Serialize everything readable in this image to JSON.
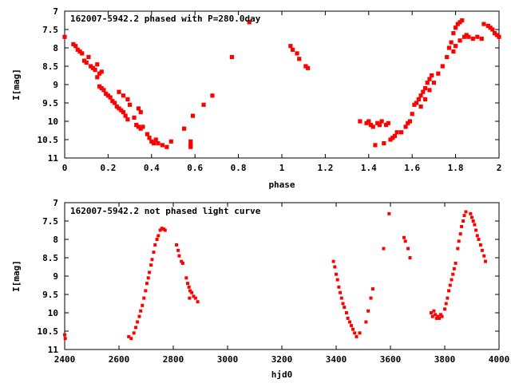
{
  "chart_data": [
    {
      "type": "scatter",
      "title": "162007-5942.2 phased with P=280.0day",
      "xlabel": "phase",
      "ylabel": "I[mag]",
      "xlim": [
        0,
        2
      ],
      "ylim": [
        11,
        7
      ],
      "y_inverted": true,
      "xticks": [
        0,
        0.2,
        0.4,
        0.6,
        0.8,
        1,
        1.2,
        1.4,
        1.6,
        1.8,
        2
      ],
      "xtick_labels": [
        "0",
        "0.2",
        "0.4",
        "0.6",
        "0.8",
        "1",
        "1.2",
        "1.4",
        "1.6",
        "1.8",
        "2"
      ],
      "yticks": [
        7,
        7.5,
        8,
        8.5,
        9,
        9.5,
        10,
        10.5,
        11
      ],
      "ytick_labels": [
        "7",
        "7.5",
        "8",
        "8.5",
        "9",
        "9.5",
        "10",
        "10.5",
        "11"
      ],
      "grid": false,
      "point_color": "#ff0000",
      "series": [
        {
          "points": [
            [
              0.0,
              7.7
            ],
            [
              0.04,
              7.9
            ],
            [
              0.05,
              7.95
            ],
            [
              0.06,
              8.05
            ],
            [
              0.07,
              8.1
            ],
            [
              0.08,
              8.15
            ],
            [
              0.09,
              8.35
            ],
            [
              0.1,
              8.4
            ],
            [
              0.11,
              8.25
            ],
            [
              0.12,
              8.5
            ],
            [
              0.13,
              8.55
            ],
            [
              0.14,
              8.6
            ],
            [
              0.15,
              8.45
            ],
            [
              0.16,
              8.7
            ],
            [
              0.17,
              8.65
            ],
            [
              0.15,
              8.8
            ],
            [
              0.16,
              9.05
            ],
            [
              0.17,
              9.1
            ],
            [
              0.18,
              9.15
            ],
            [
              0.19,
              9.25
            ],
            [
              0.2,
              9.3
            ],
            [
              0.21,
              9.35
            ],
            [
              0.22,
              9.45
            ],
            [
              0.23,
              9.5
            ],
            [
              0.24,
              9.6
            ],
            [
              0.25,
              9.65
            ],
            [
              0.26,
              9.7
            ],
            [
              0.27,
              9.75
            ],
            [
              0.28,
              9.85
            ],
            [
              0.25,
              9.2
            ],
            [
              0.27,
              9.3
            ],
            [
              0.29,
              9.4
            ],
            [
              0.3,
              9.55
            ],
            [
              0.29,
              9.95
            ],
            [
              0.32,
              9.9
            ],
            [
              0.33,
              10.1
            ],
            [
              0.34,
              10.15
            ],
            [
              0.35,
              10.2
            ],
            [
              0.36,
              10.15
            ],
            [
              0.34,
              9.65
            ],
            [
              0.35,
              9.75
            ],
            [
              0.38,
              10.35
            ],
            [
              0.39,
              10.45
            ],
            [
              0.4,
              10.55
            ],
            [
              0.41,
              10.6
            ],
            [
              0.42,
              10.5
            ],
            [
              0.43,
              10.6
            ],
            [
              0.45,
              10.65
            ],
            [
              0.47,
              10.7
            ],
            [
              0.49,
              10.55
            ],
            [
              0.55,
              10.2
            ],
            [
              0.58,
              10.65
            ],
            [
              0.58,
              10.7
            ],
            [
              0.58,
              10.55
            ],
            [
              0.59,
              9.85
            ],
            [
              0.64,
              9.55
            ],
            [
              0.68,
              9.3
            ],
            [
              0.77,
              8.25
            ],
            [
              0.85,
              7.3
            ],
            [
              1.04,
              7.95
            ],
            [
              1.05,
              8.05
            ],
            [
              1.07,
              8.15
            ],
            [
              1.08,
              8.3
            ],
            [
              1.11,
              8.5
            ],
            [
              1.12,
              8.55
            ],
            [
              1.36,
              10.0
            ],
            [
              1.39,
              10.05
            ],
            [
              1.4,
              10.0
            ],
            [
              1.41,
              10.1
            ],
            [
              1.42,
              10.15
            ],
            [
              1.43,
              10.65
            ],
            [
              1.44,
              10.05
            ],
            [
              1.45,
              10.1
            ],
            [
              1.46,
              10.0
            ],
            [
              1.47,
              10.6
            ],
            [
              1.48,
              10.1
            ],
            [
              1.49,
              10.05
            ],
            [
              1.5,
              10.5
            ],
            [
              1.51,
              10.45
            ],
            [
              1.52,
              10.4
            ],
            [
              1.53,
              10.3
            ],
            [
              1.55,
              10.3
            ],
            [
              1.57,
              10.15
            ],
            [
              1.58,
              10.05
            ],
            [
              1.59,
              10.0
            ],
            [
              1.6,
              9.8
            ],
            [
              1.61,
              9.55
            ],
            [
              1.62,
              9.5
            ],
            [
              1.63,
              9.4
            ],
            [
              1.64,
              9.3
            ],
            [
              1.65,
              9.2
            ],
            [
              1.66,
              9.1
            ],
            [
              1.67,
              8.95
            ],
            [
              1.68,
              8.85
            ],
            [
              1.69,
              8.75
            ],
            [
              1.64,
              9.6
            ],
            [
              1.66,
              9.4
            ],
            [
              1.68,
              9.15
            ],
            [
              1.7,
              8.95
            ],
            [
              1.72,
              8.7
            ],
            [
              1.74,
              8.5
            ],
            [
              1.76,
              8.25
            ],
            [
              1.77,
              8.0
            ],
            [
              1.78,
              7.85
            ],
            [
              1.79,
              7.6
            ],
            [
              1.8,
              7.45
            ],
            [
              1.81,
              7.35
            ],
            [
              1.82,
              7.3
            ],
            [
              1.83,
              7.25
            ],
            [
              1.79,
              8.1
            ],
            [
              1.8,
              7.95
            ],
            [
              1.82,
              7.8
            ],
            [
              1.84,
              7.7
            ],
            [
              1.85,
              7.65
            ],
            [
              1.86,
              7.7
            ],
            [
              1.88,
              7.75
            ],
            [
              1.9,
              7.7
            ],
            [
              1.92,
              7.75
            ],
            [
              1.93,
              7.35
            ],
            [
              1.95,
              7.4
            ],
            [
              1.96,
              7.45
            ],
            [
              1.97,
              7.5
            ],
            [
              1.98,
              7.6
            ],
            [
              1.99,
              7.65
            ],
            [
              2.0,
              7.7
            ]
          ]
        }
      ]
    },
    {
      "type": "scatter",
      "title": "162007-5942.2 not phased light curve",
      "xlabel": "hjd0",
      "ylabel": "I[mag]",
      "xlim": [
        2400,
        4000
      ],
      "ylim": [
        11,
        7
      ],
      "y_inverted": true,
      "xticks": [
        2400,
        2600,
        2800,
        3000,
        3200,
        3400,
        3600,
        3800,
        4000
      ],
      "xtick_labels": [
        "2400",
        "2600",
        "2800",
        "3000",
        "3200",
        "3400",
        "3600",
        "3800",
        "4000"
      ],
      "yticks": [
        7,
        7.5,
        8,
        8.5,
        9,
        9.5,
        10,
        10.5,
        11
      ],
      "ytick_labels": [
        "7",
        "7.5",
        "8",
        "8.5",
        "9",
        "9.5",
        "10",
        "10.5",
        "11"
      ],
      "grid": false,
      "point_color": "#ff0000",
      "series": [
        {
          "points": [
            [
              2400,
              10.6
            ],
            [
              2402,
              10.7
            ],
            [
              2636,
              10.65
            ],
            [
              2645,
              10.7
            ],
            [
              2655,
              10.55
            ],
            [
              2662,
              10.4
            ],
            [
              2668,
              10.25
            ],
            [
              2675,
              10.1
            ],
            [
              2680,
              9.95
            ],
            [
              2686,
              9.8
            ],
            [
              2692,
              9.6
            ],
            [
              2698,
              9.4
            ],
            [
              2703,
              9.2
            ],
            [
              2708,
              9.05
            ],
            [
              2712,
              8.9
            ],
            [
              2718,
              8.7
            ],
            [
              2722,
              8.55
            ],
            [
              2728,
              8.35
            ],
            [
              2733,
              8.15
            ],
            [
              2740,
              8.0
            ],
            [
              2745,
              7.9
            ],
            [
              2752,
              7.75
            ],
            [
              2758,
              7.7
            ],
            [
              2765,
              7.72
            ],
            [
              2770,
              7.75
            ],
            [
              2812,
              8.15
            ],
            [
              2818,
              8.3
            ],
            [
              2822,
              8.45
            ],
            [
              2830,
              8.6
            ],
            [
              2835,
              8.65
            ],
            [
              2848,
              9.05
            ],
            [
              2853,
              9.2
            ],
            [
              2858,
              9.3
            ],
            [
              2862,
              9.4
            ],
            [
              2868,
              9.45
            ],
            [
              2875,
              9.55
            ],
            [
              2882,
              9.6
            ],
            [
              2890,
              9.7
            ],
            [
              2860,
              9.6
            ],
            [
              3390,
              8.6
            ],
            [
              3395,
              8.75
            ],
            [
              3400,
              8.95
            ],
            [
              3405,
              9.1
            ],
            [
              3410,
              9.3
            ],
            [
              3415,
              9.45
            ],
            [
              3420,
              9.6
            ],
            [
              3425,
              9.75
            ],
            [
              3430,
              9.85
            ],
            [
              3438,
              10.0
            ],
            [
              3443,
              10.15
            ],
            [
              3450,
              10.25
            ],
            [
              3456,
              10.35
            ],
            [
              3462,
              10.45
            ],
            [
              3468,
              10.55
            ],
            [
              3475,
              10.65
            ],
            [
              3487,
              10.55
            ],
            [
              3510,
              10.25
            ],
            [
              3518,
              9.95
            ],
            [
              3528,
              9.6
            ],
            [
              3535,
              9.35
            ],
            [
              3575,
              8.25
            ],
            [
              3595,
              7.3
            ],
            [
              3650,
              7.95
            ],
            [
              3655,
              8.05
            ],
            [
              3665,
              8.25
            ],
            [
              3672,
              8.5
            ],
            [
              3750,
              10.0
            ],
            [
              3755,
              10.1
            ],
            [
              3760,
              9.95
            ],
            [
              3765,
              10.05
            ],
            [
              3770,
              10.15
            ],
            [
              3775,
              10.1
            ],
            [
              3780,
              10.15
            ],
            [
              3785,
              10.05
            ],
            [
              3790,
              10.1
            ],
            [
              3800,
              9.9
            ],
            [
              3805,
              9.75
            ],
            [
              3810,
              9.6
            ],
            [
              3815,
              9.4
            ],
            [
              3820,
              9.25
            ],
            [
              3825,
              9.1
            ],
            [
              3830,
              8.95
            ],
            [
              3835,
              8.8
            ],
            [
              3840,
              8.65
            ],
            [
              3848,
              8.25
            ],
            [
              3852,
              8.05
            ],
            [
              3858,
              7.85
            ],
            [
              3862,
              7.65
            ],
            [
              3868,
              7.5
            ],
            [
              3872,
              7.35
            ],
            [
              3878,
              7.25
            ],
            [
              3895,
              7.3
            ],
            [
              3900,
              7.4
            ],
            [
              3905,
              7.5
            ],
            [
              3910,
              7.6
            ],
            [
              3915,
              7.75
            ],
            [
              3920,
              7.9
            ],
            [
              3925,
              8.0
            ],
            [
              3932,
              8.15
            ],
            [
              3938,
              8.3
            ],
            [
              3945,
              8.45
            ],
            [
              3950,
              8.6
            ]
          ]
        }
      ]
    }
  ]
}
